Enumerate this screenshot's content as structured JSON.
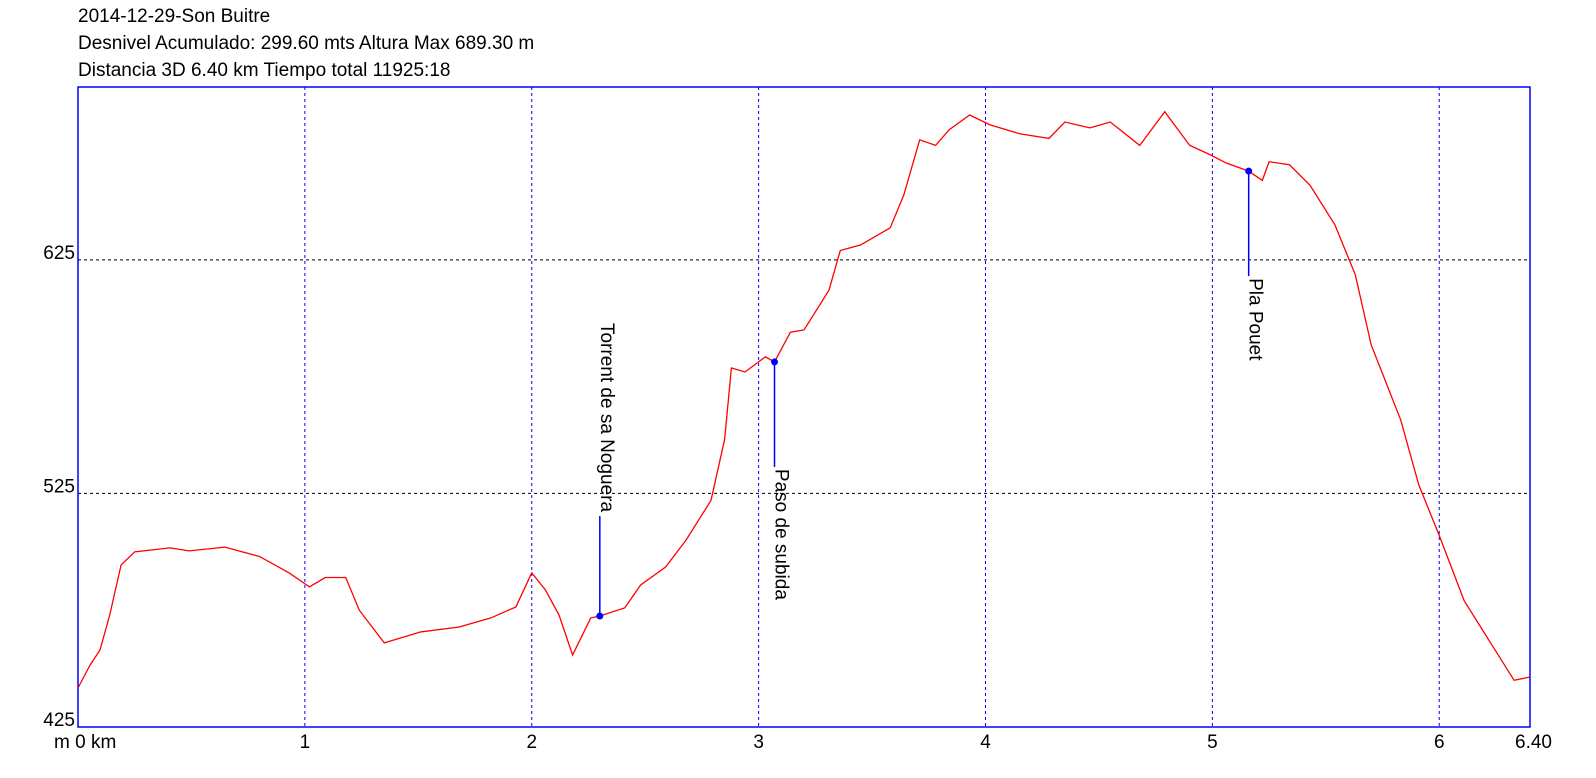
{
  "chart_data": {
    "type": "line",
    "title": "2014-12-29-Son Buitre",
    "subtitles": [
      "Desnivel Acumulado: 299.60 mts  Altura Max 689.30 m",
      "Distancia 3D 6.40 km  Tiempo total 11925:18"
    ],
    "x": [
      0,
      0.053,
      0.097,
      0.14,
      0.19,
      0.25,
      0.405,
      0.49,
      0.648,
      0.8,
      0.93,
      1.02,
      1.09,
      1.18,
      1.24,
      1.35,
      1.51,
      1.68,
      1.82,
      1.93,
      2.0,
      2.06,
      2.12,
      2.18,
      2.26,
      2.3,
      2.41,
      2.48,
      2.59,
      2.68,
      2.79,
      2.85,
      2.88,
      2.94,
      3.03,
      3.07,
      3.14,
      3.2,
      3.31,
      3.36,
      3.45,
      3.58,
      3.64,
      3.71,
      3.78,
      3.84,
      3.93,
      4.02,
      4.15,
      4.28,
      4.35,
      4.46,
      4.55,
      4.68,
      4.79,
      4.9,
      4.99,
      5.06,
      5.16,
      5.22,
      5.25,
      5.34,
      5.43,
      5.54,
      5.63,
      5.7,
      5.83,
      5.91,
      6.0,
      6.11,
      6.22,
      6.33,
      6.4
    ],
    "values": [
      441.7,
      451.5,
      458,
      473,
      494.4,
      500,
      501.7,
      500.4,
      502,
      498,
      491,
      485,
      489,
      489,
      475,
      461,
      465.7,
      467.8,
      471.7,
      476.4,
      491,
      483.7,
      473,
      455.8,
      471.7,
      472.5,
      476,
      485.8,
      493.5,
      505,
      522,
      548,
      578.7,
      577,
      583.5,
      581.3,
      594,
      595,
      612,
      629,
      631.4,
      638.7,
      652.8,
      676.4,
      674,
      680.7,
      687,
      682.8,
      679,
      677,
      684,
      681.5,
      684,
      674,
      688.4,
      674,
      670,
      666.5,
      663,
      659,
      667,
      665.7,
      657,
      640,
      618.6,
      588.6,
      556.5,
      528.6,
      507,
      479,
      462,
      445,
      446.4
    ],
    "color": "#ff0000",
    "annotations": [
      {
        "text": "Torrent de sa Noguera",
        "x": 2.3,
        "y": 472.5
      },
      {
        "text": "Paso de subida",
        "x": 3.07,
        "y": 581.3
      },
      {
        "text": "Pla Pouet",
        "x": 5.16,
        "y": 663
      }
    ],
    "annotation_color": "#0000ff",
    "xlim": [
      0,
      6.4
    ],
    "xticks": [
      {
        "value": 0,
        "label": "m 0 km"
      },
      1,
      2,
      3,
      4,
      5,
      6,
      {
        "value": 6.4,
        "label": "6.40"
      }
    ],
    "ylim": [
      425,
      699
    ],
    "yticks": [
      425,
      525,
      625
    ],
    "grid": true
  }
}
